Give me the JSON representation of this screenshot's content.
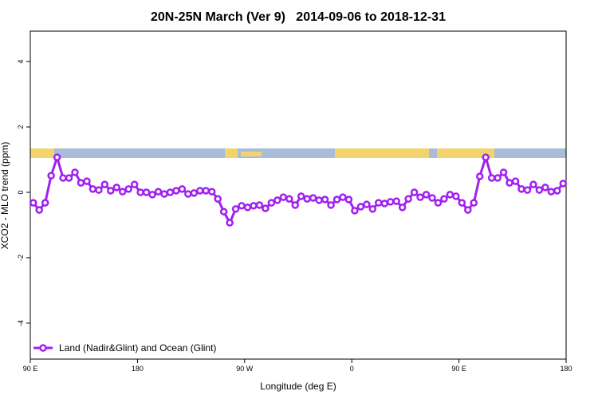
{
  "chart_data": {
    "type": "line",
    "title": "20N-25N March (Ver 9)   2014-09-06 to 2018-12-31",
    "xlabel": "Longitude (deg E)",
    "ylabel": "XCO2 - MLO trend (ppm)",
    "x": [
      92.5,
      97.5,
      102.5,
      107.5,
      112.5,
      117.5,
      122.5,
      127.5,
      132.5,
      137.5,
      142.5,
      147.5,
      152.5,
      157.5,
      162.5,
      167.5,
      172.5,
      177.5,
      182.5,
      187.5,
      192.5,
      197.5,
      202.5,
      207.5,
      212.5,
      217.5,
      222.5,
      227.5,
      232.5,
      237.5,
      242.5,
      247.5,
      252.5,
      257.5,
      262.5,
      267.5,
      272.5,
      277.5,
      282.5,
      287.5,
      292.5,
      297.5,
      302.5,
      307.5,
      312.5,
      317.5,
      322.5,
      327.5,
      332.5,
      337.5,
      342.5,
      347.5,
      352.5,
      357.5,
      362.5,
      367.5,
      372.5,
      377.5,
      382.5,
      387.5,
      392.5,
      397.5,
      402.5,
      407.5,
      412.5,
      417.5,
      422.5,
      427.5,
      432.5,
      437.5,
      442.5,
      447.5,
      452.5,
      457.5,
      462.5,
      467.5,
      472.5,
      477.5,
      482.5,
      487.5,
      492.5,
      497.5,
      502.5,
      507.5,
      512.5,
      517.5,
      522.5,
      527.5,
      532.5,
      537.5
    ],
    "series": [
      {
        "name": "Land (Nadir&Glint) and Ocean (Glint)",
        "color": "#a020f0",
        "values": [
          -0.32,
          -0.54,
          -0.32,
          0.51,
          1.07,
          0.44,
          0.44,
          0.61,
          0.29,
          0.34,
          0.1,
          0.07,
          0.24,
          0.05,
          0.15,
          0.02,
          0.1,
          0.24,
          0,
          0,
          -0.07,
          0.02,
          -0.05,
          0,
          0.05,
          0.1,
          -0.05,
          -0.02,
          0.05,
          0.05,
          0.02,
          -0.2,
          -0.59,
          -0.93,
          -0.51,
          -0.41,
          -0.46,
          -0.41,
          -0.39,
          -0.49,
          -0.32,
          -0.24,
          -0.15,
          -0.2,
          -0.39,
          -0.12,
          -0.2,
          -0.17,
          -0.24,
          -0.22,
          -0.39,
          -0.22,
          -0.15,
          -0.22,
          -0.56,
          -0.44,
          -0.37,
          -0.51,
          -0.32,
          -0.34,
          -0.29,
          -0.27,
          -0.46,
          -0.2,
          0,
          -0.15,
          -0.07,
          -0.17,
          -0.32,
          -0.2,
          -0.07,
          -0.12,
          -0.32,
          -0.54,
          -0.32,
          0.49,
          1.07,
          0.44,
          0.44,
          0.61,
          0.29,
          0.34,
          0.1,
          0.07,
          0.24,
          0.07,
          0.15,
          0.02,
          0.05,
          0.27
        ]
      }
    ],
    "xlim": [
      90,
      540
    ],
    "xticks": [
      {
        "value": 90,
        "label": "90 E"
      },
      180,
      {
        "value": 270,
        "label": "90 W"
      },
      0,
      {
        "value": 450,
        "label": "90 E"
      },
      {
        "value": 540,
        "label": "180"
      }
    ],
    "ylim": [
      -5.1,
      4.93
    ],
    "yticks": [
      -4,
      -2,
      0,
      2,
      4
    ],
    "legend": "bottom-left"
  }
}
